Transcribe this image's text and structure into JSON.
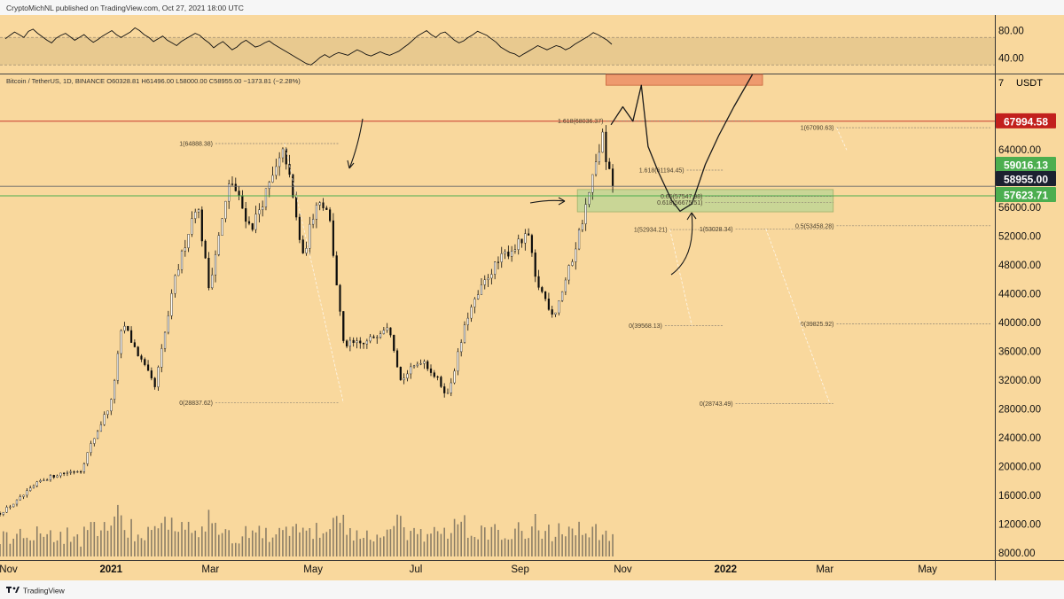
{
  "header": {
    "publish_line": "CryptoMichNL published on TradingView.com, Oct 27, 2021 18:00 UTC",
    "symbol_line": "Bitcoin / TetherUS, 1D, BINANCE  O60328.81  H61496.00  L58000.00  C58955.00  −1373.81 (−2.28%)",
    "currency": "USDT",
    "currency_tick": "7"
  },
  "footer": {
    "brand": "TradingView",
    "logo_icon": "tradingview-logo-icon"
  },
  "colors": {
    "background": "#f9d89d",
    "candle": "#0c0c0c",
    "volume": "#8c7e66",
    "fib_line": "#8f8473",
    "green_zone": "#c9d696",
    "red_zone": "#ee9a6e",
    "badge_red": "#c2201d",
    "badge_green": "#4cae4f",
    "badge_dark": "#1c2130"
  },
  "rsi": {
    "ticks": [
      "80.00",
      "40.00"
    ],
    "upper": 70,
    "lower": 30,
    "values": [
      68,
      73,
      78,
      74,
      70,
      79,
      82,
      76,
      71,
      66,
      62,
      69,
      73,
      76,
      71,
      66,
      70,
      74,
      68,
      63,
      67,
      72,
      76,
      80,
      74,
      70,
      74,
      78,
      84,
      80,
      74,
      70,
      64,
      68,
      72,
      66,
      62,
      58,
      64,
      68,
      72,
      76,
      73,
      67,
      62,
      55,
      60,
      64,
      58,
      52,
      56,
      62,
      66,
      61,
      56,
      58,
      62,
      65,
      60,
      56,
      52,
      48,
      44,
      40,
      36,
      32,
      30,
      35,
      41,
      45,
      41,
      45,
      48,
      46,
      44,
      48,
      52,
      49,
      45,
      43,
      46,
      49,
      46,
      44,
      47,
      50,
      55,
      60,
      66,
      72,
      76,
      80,
      74,
      70,
      76,
      78,
      72,
      66,
      62,
      65,
      70,
      74,
      79,
      76,
      73,
      68,
      63,
      56,
      52,
      48,
      46,
      42,
      46,
      50,
      54,
      58,
      55,
      52,
      55,
      58,
      56,
      52,
      55,
      60,
      64,
      68,
      72,
      77,
      74,
      70,
      66,
      60
    ]
  },
  "chart_data": {
    "type": "candlestick",
    "title": "Bitcoin / TetherUS, 1D, BINANCE",
    "ylabel": "USDT",
    "ylim": [
      7000,
      74500
    ],
    "y_ticks": [
      "64000.00",
      "60000.00",
      "56000.00",
      "52000.00",
      "48000.00",
      "44000.00",
      "40000.00",
      "36000.00",
      "32000.00",
      "28000.00",
      "24000.00",
      "20000.00",
      "16000.00",
      "12000.00",
      "8000.00"
    ],
    "x_ticks": [
      "Nov",
      "2021",
      "Mar",
      "May",
      "Jul",
      "Sep",
      "Nov",
      "2022",
      "Mar",
      "May"
    ],
    "xlim": [
      "2020-10-27",
      "2022-06-10"
    ],
    "price_path": [
      [
        "2020-10-27",
        13500
      ],
      [
        "2020-11-05",
        15000
      ],
      [
        "2020-11-20",
        18000
      ],
      [
        "2020-12-01",
        19000
      ],
      [
        "2020-12-14",
        19500
      ],
      [
        "2020-12-20",
        23000
      ],
      [
        "2021-01-01",
        29000
      ],
      [
        "2021-01-08",
        40000
      ],
      [
        "2021-01-15",
        36500
      ],
      [
        "2021-01-27",
        31000
      ],
      [
        "2021-02-08",
        46000
      ],
      [
        "2021-02-21",
        57000
      ],
      [
        "2021-02-28",
        45000
      ],
      [
        "2021-03-13",
        60000
      ],
      [
        "2021-03-25",
        53000
      ],
      [
        "2021-04-14",
        64000
      ],
      [
        "2021-04-25",
        49000
      ],
      [
        "2021-05-03",
        57000
      ],
      [
        "2021-05-10",
        56000
      ],
      [
        "2021-05-19",
        37000
      ],
      [
        "2021-06-01",
        37000
      ],
      [
        "2021-06-15",
        40000
      ],
      [
        "2021-06-22",
        32000
      ],
      [
        "2021-07-05",
        35000
      ],
      [
        "2021-07-20",
        30000
      ],
      [
        "2021-08-01",
        41000
      ],
      [
        "2021-08-14",
        47000
      ],
      [
        "2021-08-23",
        49500
      ],
      [
        "2021-09-06",
        52000
      ],
      [
        "2021-09-10",
        46000
      ],
      [
        "2021-09-21",
        41000
      ],
      [
        "2021-10-01",
        48000
      ],
      [
        "2021-10-11",
        57000
      ],
      [
        "2021-10-20",
        66000
      ],
      [
        "2021-10-22",
        62000
      ],
      [
        "2021-10-27",
        58955
      ]
    ],
    "volume_max": 1,
    "current_price": 58955.0,
    "price_labels": [
      {
        "text": "67994.58",
        "value": 67994.58,
        "color": "badge_red"
      },
      {
        "text": "59016.13",
        "value": 59016.13,
        "color": "badge_green"
      },
      {
        "text": "58955.00",
        "value": 58955.0,
        "color": "badge_dark"
      },
      {
        "text": "57623.71",
        "value": 57623.71,
        "color": "badge_green"
      }
    ],
    "horizontal_lines": [
      {
        "value": 67994.58,
        "color": "#c2201d"
      },
      {
        "value": 58955.0,
        "color": "#6b6b6b"
      },
      {
        "value": 57623.71,
        "color": "#4cae4f"
      }
    ],
    "zones": [
      {
        "name": "green-support-zone",
        "from": "2021-10-05",
        "to": "2022-03-06",
        "low": 55400,
        "high": 58500,
        "color": "green_zone"
      },
      {
        "name": "red-target-zone",
        "from": "2021-10-22",
        "to": "2022-01-23",
        "low": 73000,
        "high": 74800,
        "color": "red_zone"
      }
    ],
    "fib_levels": [
      {
        "text": "1(64888.38)",
        "value": 64888.38,
        "from": "2021-03-04",
        "to": "2021-05-16"
      },
      {
        "text": "0(28837.62)",
        "value": 28837.62,
        "from": "2021-03-04",
        "to": "2021-05-16"
      },
      {
        "text": "1.618(68036.37)",
        "value": 68036.37,
        "from": "2021-10-22",
        "to": "2022-01-17"
      },
      {
        "text": "1.618(61194.45)",
        "value": 61194.45,
        "from": "2021-12-09",
        "to": "2021-12-31"
      },
      {
        "text": "0.65(57547.98)",
        "value": 57547.98,
        "from": "2021-12-20",
        "to": "2022-03-06"
      },
      {
        "text": "0.618(56675.51)",
        "value": 56675.51,
        "from": "2021-12-20",
        "to": "2022-03-06"
      },
      {
        "text": "1(52934.21)",
        "value": 52934.21,
        "from": "2021-11-29",
        "to": "2021-12-31"
      },
      {
        "text": "1(53028.34)",
        "value": 53028.34,
        "from": "2022-01-07",
        "to": "2022-03-06"
      },
      {
        "text": "0.5(53458.28)",
        "value": 53458.28,
        "from": "2022-03-08",
        "to": "2022-06-08"
      },
      {
        "text": "0(39568.13)",
        "value": 39568.13,
        "from": "2021-11-26",
        "to": "2021-12-31"
      },
      {
        "text": "0(39825.92)",
        "value": 39825.92,
        "from": "2022-03-08",
        "to": "2022-06-08"
      },
      {
        "text": "1(67090.63)",
        "value": 67090.63,
        "from": "2022-03-08",
        "to": "2022-06-08"
      },
      {
        "text": "0(28743.49)",
        "value": 28743.49,
        "from": "2022-01-07",
        "to": "2022-03-06"
      }
    ],
    "projection_path": [
      [
        "2021-10-25",
        67500
      ],
      [
        "2021-11-01",
        70000
      ],
      [
        "2021-11-07",
        68000
      ],
      [
        "2021-11-12",
        73000
      ],
      [
        "2021-11-16",
        64500
      ],
      [
        "2021-11-22",
        61000
      ],
      [
        "2021-11-30",
        57000
      ],
      [
        "2021-12-05",
        55500
      ],
      [
        "2021-12-12",
        56500
      ],
      [
        "2021-12-20",
        62000
      ],
      [
        "2021-12-28",
        66000
      ],
      [
        "2022-01-06",
        70000
      ],
      [
        "2022-01-17",
        74500
      ]
    ]
  }
}
